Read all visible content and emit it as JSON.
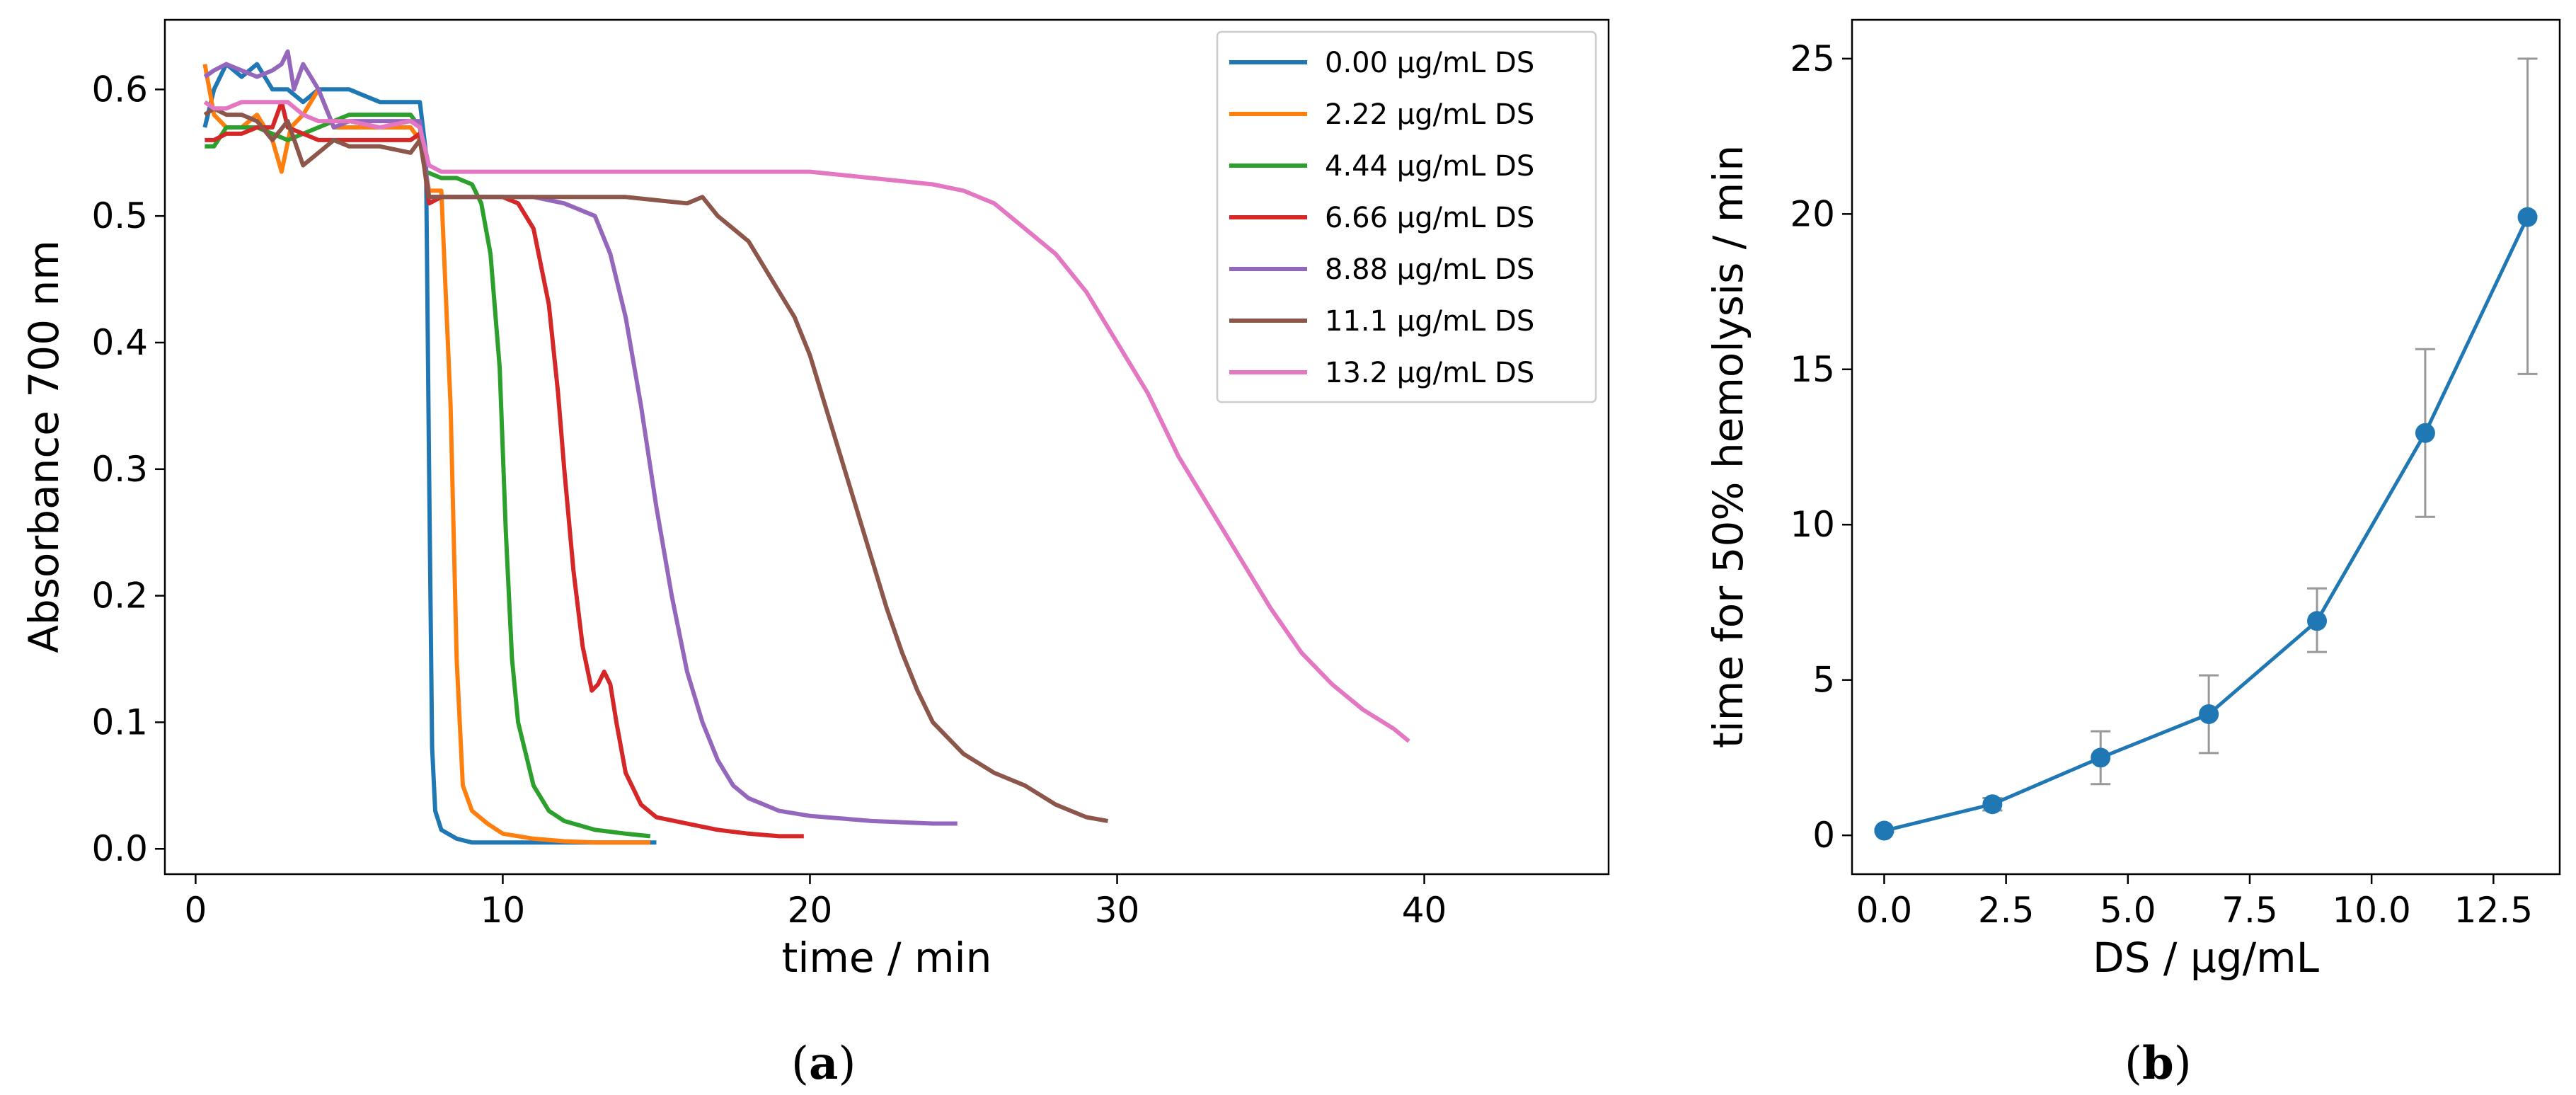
{
  "chart_data": [
    {
      "type": "line",
      "panel_label": "a",
      "title": "",
      "xlabel": "time / min",
      "ylabel": "Absorbance 700 nm",
      "xlim": [
        -1,
        46
      ],
      "ylim": [
        -0.02,
        0.655
      ],
      "xticks": [
        0,
        10,
        20,
        30,
        40
      ],
      "yticks": [
        0.0,
        0.1,
        0.2,
        0.3,
        0.4,
        0.5,
        0.6
      ],
      "ytick_labels": [
        "0.0",
        "0.1",
        "0.2",
        "0.3",
        "0.4",
        "0.5",
        "0.6"
      ],
      "grid": false,
      "legend_position": "top-right",
      "series": [
        {
          "name": "0.00 μg/mL DS",
          "color": "#1f77b4",
          "x": [
            0.3,
            0.6,
            1.0,
            1.5,
            2.0,
            2.5,
            3.0,
            3.5,
            4.0,
            5.0,
            6.0,
            7.0,
            7.3,
            7.5,
            7.6,
            7.7,
            7.8,
            8.0,
            8.5,
            9.0,
            10.0,
            12.0,
            15.0
          ],
          "y": [
            0.57,
            0.6,
            0.62,
            0.61,
            0.62,
            0.6,
            0.6,
            0.59,
            0.6,
            0.6,
            0.59,
            0.59,
            0.59,
            0.55,
            0.3,
            0.08,
            0.03,
            0.015,
            0.008,
            0.005,
            0.005,
            0.005,
            0.005
          ]
        },
        {
          "name": "2.22 μg/mL DS",
          "color": "#ff7f0e",
          "x": [
            0.3,
            0.6,
            1.0,
            1.5,
            2.0,
            2.5,
            2.8,
            3.1,
            3.5,
            4.0,
            4.5,
            5.0,
            6.0,
            7.0,
            7.3,
            7.6,
            8.0,
            8.3,
            8.5,
            8.7,
            9.0,
            9.5,
            10.0,
            11.0,
            12.0,
            13.0,
            14.0,
            14.8
          ],
          "y": [
            0.62,
            0.58,
            0.57,
            0.57,
            0.58,
            0.56,
            0.535,
            0.57,
            0.58,
            0.6,
            0.57,
            0.57,
            0.57,
            0.57,
            0.56,
            0.52,
            0.52,
            0.35,
            0.15,
            0.05,
            0.03,
            0.02,
            0.012,
            0.008,
            0.006,
            0.005,
            0.005,
            0.005
          ]
        },
        {
          "name": "4.44 μg/mL DS",
          "color": "#2ca02c",
          "x": [
            0.3,
            0.6,
            1.0,
            1.5,
            2.0,
            3.0,
            4.0,
            5.0,
            6.0,
            7.0,
            7.3,
            7.5,
            8.0,
            8.5,
            9.0,
            9.3,
            9.6,
            9.9,
            10.1,
            10.3,
            10.5,
            10.8,
            11.0,
            11.5,
            12.0,
            13.0,
            14.0,
            14.8
          ],
          "y": [
            0.555,
            0.555,
            0.57,
            0.57,
            0.57,
            0.56,
            0.57,
            0.58,
            0.58,
            0.58,
            0.57,
            0.535,
            0.53,
            0.53,
            0.525,
            0.51,
            0.47,
            0.38,
            0.25,
            0.15,
            0.1,
            0.07,
            0.05,
            0.03,
            0.022,
            0.015,
            0.012,
            0.01
          ]
        },
        {
          "name": "6.66 μg/mL DS",
          "color": "#d62728",
          "x": [
            0.3,
            0.6,
            1.0,
            1.5,
            2.0,
            2.5,
            2.8,
            3.0,
            3.5,
            4.0,
            5.0,
            6.0,
            7.0,
            7.3,
            7.6,
            8.0,
            9.0,
            10.0,
            10.5,
            11.0,
            11.5,
            11.8,
            12.0,
            12.3,
            12.6,
            12.9,
            13.1,
            13.3,
            13.5,
            13.7,
            14.0,
            14.5,
            15.0,
            16.0,
            17.0,
            18.0,
            19.0,
            19.8
          ],
          "y": [
            0.56,
            0.56,
            0.565,
            0.565,
            0.57,
            0.57,
            0.59,
            0.57,
            0.565,
            0.56,
            0.56,
            0.56,
            0.56,
            0.565,
            0.51,
            0.515,
            0.515,
            0.515,
            0.51,
            0.49,
            0.43,
            0.36,
            0.3,
            0.22,
            0.16,
            0.125,
            0.13,
            0.14,
            0.13,
            0.1,
            0.06,
            0.035,
            0.025,
            0.02,
            0.015,
            0.012,
            0.01,
            0.01
          ]
        },
        {
          "name": "8.88 μg/mL DS",
          "color": "#9467bd",
          "x": [
            0.3,
            0.6,
            1.0,
            1.5,
            2.0,
            2.5,
            2.8,
            3.0,
            3.2,
            3.5,
            4.0,
            4.5,
            5.0,
            6.0,
            7.0,
            7.3,
            7.6,
            8.0,
            9.0,
            10.0,
            11.0,
            12.0,
            12.5,
            13.0,
            13.5,
            14.0,
            14.5,
            15.0,
            15.5,
            16.0,
            16.5,
            17.0,
            17.5,
            18.0,
            19.0,
            20.0,
            21.0,
            22.0,
            23.0,
            24.0,
            24.8
          ],
          "y": [
            0.61,
            0.615,
            0.62,
            0.615,
            0.61,
            0.615,
            0.62,
            0.63,
            0.6,
            0.62,
            0.6,
            0.57,
            0.575,
            0.575,
            0.575,
            0.575,
            0.515,
            0.515,
            0.515,
            0.515,
            0.515,
            0.51,
            0.505,
            0.5,
            0.47,
            0.42,
            0.35,
            0.27,
            0.2,
            0.14,
            0.1,
            0.07,
            0.05,
            0.04,
            0.03,
            0.026,
            0.024,
            0.022,
            0.021,
            0.02,
            0.02
          ]
        },
        {
          "name": "11.1 μg/mL DS",
          "color": "#8c564b",
          "x": [
            0.3,
            0.6,
            1.0,
            1.5,
            2.0,
            2.5,
            3.0,
            3.5,
            4.0,
            4.5,
            5.0,
            6.0,
            7.0,
            7.3,
            7.6,
            8.0,
            10.0,
            12.0,
            14.0,
            16.0,
            16.5,
            17.0,
            17.5,
            18.0,
            18.5,
            19.0,
            19.5,
            20.0,
            20.5,
            21.0,
            21.5,
            22.0,
            22.5,
            23.0,
            23.5,
            24.0,
            25.0,
            26.0,
            27.0,
            28.0,
            28.5,
            29.0,
            29.7
          ],
          "y": [
            0.58,
            0.585,
            0.58,
            0.58,
            0.575,
            0.56,
            0.575,
            0.54,
            0.55,
            0.56,
            0.555,
            0.555,
            0.55,
            0.56,
            0.515,
            0.515,
            0.515,
            0.515,
            0.515,
            0.51,
            0.515,
            0.5,
            0.49,
            0.48,
            0.46,
            0.44,
            0.42,
            0.39,
            0.35,
            0.31,
            0.27,
            0.23,
            0.19,
            0.155,
            0.125,
            0.1,
            0.075,
            0.06,
            0.05,
            0.035,
            0.03,
            0.025,
            0.022
          ]
        },
        {
          "name": "13.2 μg/mL DS",
          "color": "#e377c2",
          "x": [
            0.3,
            0.6,
            1.0,
            1.5,
            2.0,
            2.5,
            3.0,
            3.5,
            4.0,
            5.0,
            6.0,
            7.0,
            7.3,
            7.6,
            8.0,
            10.0,
            12.0,
            14.0,
            16.0,
            18.0,
            20.0,
            22.0,
            24.0,
            25.0,
            26.0,
            27.0,
            28.0,
            29.0,
            30.0,
            31.0,
            32.0,
            33.0,
            34.0,
            35.0,
            36.0,
            37.0,
            38.0,
            39.0,
            39.5
          ],
          "y": [
            0.59,
            0.585,
            0.585,
            0.59,
            0.59,
            0.59,
            0.59,
            0.58,
            0.575,
            0.575,
            0.57,
            0.575,
            0.57,
            0.54,
            0.535,
            0.535,
            0.535,
            0.535,
            0.535,
            0.535,
            0.535,
            0.53,
            0.525,
            0.52,
            0.51,
            0.49,
            0.47,
            0.44,
            0.4,
            0.36,
            0.31,
            0.27,
            0.23,
            0.19,
            0.155,
            0.13,
            0.11,
            0.095,
            0.085
          ]
        }
      ]
    },
    {
      "type": "line",
      "panel_label": "b",
      "title": "",
      "xlabel": "DS / μg/mL",
      "ylabel": "time for 50% hemolysis / min",
      "xlim": [
        -0.66,
        13.86
      ],
      "ylim": [
        -1.25,
        26.25
      ],
      "xticks": [
        0.0,
        2.5,
        5.0,
        7.5,
        10.0,
        12.5
      ],
      "xtick_labels": [
        "0.0",
        "2.5",
        "5.0",
        "7.5",
        "10.0",
        "12.5"
      ],
      "yticks": [
        0,
        5,
        10,
        15,
        20,
        25
      ],
      "grid": false,
      "series": [
        {
          "name": "t50",
          "color": "#1f77b4",
          "x": [
            0.0,
            2.22,
            4.44,
            6.66,
            8.88,
            11.1,
            13.2
          ],
          "y": [
            0.15,
            1.0,
            2.5,
            3.9,
            6.9,
            12.95,
            19.9
          ],
          "err_low": [
            0.1,
            0.8,
            1.65,
            2.65,
            5.9,
            10.25,
            14.85
          ],
          "err_high": [
            0.2,
            1.2,
            3.35,
            5.15,
            7.95,
            15.65,
            25.0
          ]
        }
      ]
    }
  ]
}
